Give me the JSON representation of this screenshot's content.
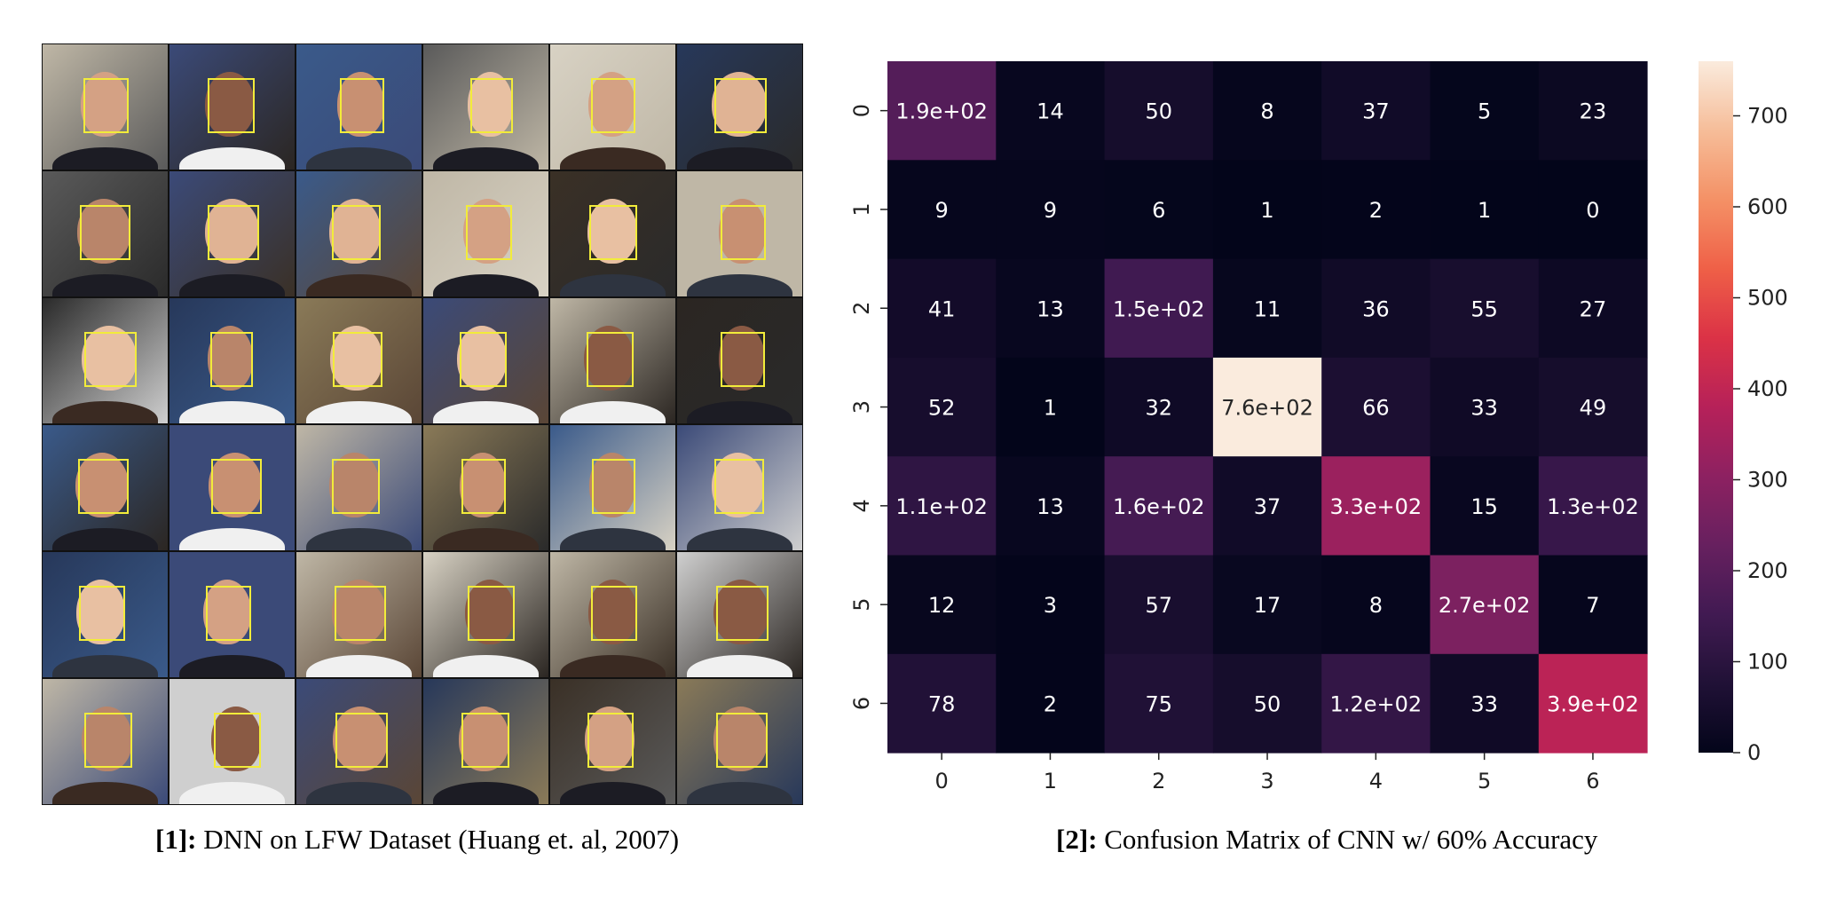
{
  "figure1": {
    "caption_ref": "[1]:",
    "caption_text": " DNN on LFW Dataset (Huang et. al, 2007)",
    "grid": {
      "rows": 6,
      "cols": 6
    }
  },
  "figure2": {
    "caption_ref": "[2]:",
    "caption_text": " Confusion Matrix of CNN w/ 60% Accuracy"
  },
  "colors": {
    "detection_box": "#f2ec3a",
    "cmap_low": "#03051a",
    "cmap_high": "#faebdd"
  },
  "chart_data": {
    "type": "heatmap",
    "title": "",
    "xlabel": "",
    "ylabel": "",
    "x_categories": [
      "0",
      "1",
      "2",
      "3",
      "4",
      "5",
      "6"
    ],
    "y_categories": [
      "0",
      "1",
      "2",
      "3",
      "4",
      "5",
      "6"
    ],
    "values": [
      [
        190,
        14,
        50,
        8,
        37,
        5,
        23
      ],
      [
        9,
        9,
        6,
        1,
        2,
        1,
        0
      ],
      [
        41,
        13,
        150,
        11,
        36,
        55,
        27
      ],
      [
        52,
        1,
        32,
        760,
        66,
        33,
        49
      ],
      [
        110,
        13,
        160,
        37,
        330,
        15,
        130
      ],
      [
        12,
        3,
        57,
        17,
        8,
        270,
        7
      ],
      [
        78,
        2,
        75,
        50,
        120,
        33,
        390
      ]
    ],
    "annotations": [
      [
        "1.9e+02",
        "14",
        "50",
        "8",
        "37",
        "5",
        "23"
      ],
      [
        "9",
        "9",
        "6",
        "1",
        "2",
        "1",
        "0"
      ],
      [
        "41",
        "13",
        "1.5e+02",
        "11",
        "36",
        "55",
        "27"
      ],
      [
        "52",
        "1",
        "32",
        "7.6e+02",
        "66",
        "33",
        "49"
      ],
      [
        "1.1e+02",
        "13",
        "1.6e+02",
        "37",
        "3.3e+02",
        "15",
        "1.3e+02"
      ],
      [
        "12",
        "3",
        "57",
        "17",
        "8",
        "2.7e+02",
        "7"
      ],
      [
        "78",
        "2",
        "75",
        "50",
        "1.2e+02",
        "33",
        "3.9e+02"
      ]
    ],
    "colorbar": {
      "min": 0,
      "max": 760,
      "ticks": [
        0,
        100,
        200,
        300,
        400,
        500,
        600,
        700
      ],
      "colormap": "rocket"
    }
  }
}
